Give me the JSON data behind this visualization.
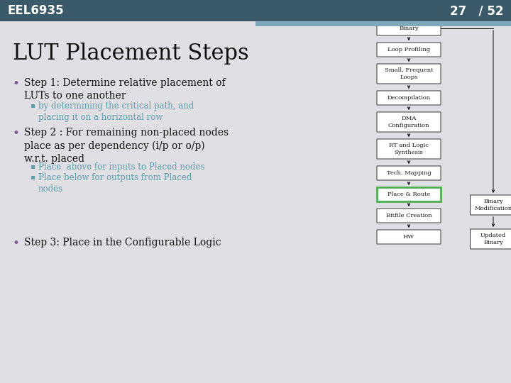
{
  "background_color": "#e0e0e4",
  "header_color": "#3a5a6a",
  "header_text": "EEL6935",
  "page_num": "27   / 52",
  "title": "LUT Placement Steps",
  "bullet_color": "#7c5c99",
  "sub_bullet_color": "#5b9eaa",
  "title_fontsize": 22,
  "main_fontsize": 10,
  "sub_fontsize": 8.5,
  "accent_color": "#7fa8b8",
  "flowchart": {
    "nodes": [
      {
        "label": "Binary",
        "col": 0,
        "row": 0,
        "h2": false,
        "highlight": false
      },
      {
        "label": "Loop Profiling",
        "col": 0,
        "row": 1,
        "h2": false,
        "highlight": false
      },
      {
        "label": "Small, Frequent\nLoops",
        "col": 0,
        "row": 2,
        "h2": true,
        "highlight": false
      },
      {
        "label": "Decompilation",
        "col": 0,
        "row": 3,
        "h2": false,
        "highlight": false
      },
      {
        "label": "DMA\nConfiguration",
        "col": 0,
        "row": 4,
        "h2": true,
        "highlight": false
      },
      {
        "label": "RT and Logic\nSynthesis",
        "col": 0,
        "row": 5,
        "h2": true,
        "highlight": false
      },
      {
        "label": "Tech. Mapping",
        "col": 0,
        "row": 6,
        "h2": false,
        "highlight": false
      },
      {
        "label": "Place & Route",
        "col": 0,
        "row": 7,
        "h2": false,
        "highlight": true
      },
      {
        "label": "Bitfile Creation",
        "col": 0,
        "row": 8,
        "h2": false,
        "highlight": false
      },
      {
        "label": "HW",
        "col": 0,
        "row": 9,
        "h2": false,
        "highlight": false
      }
    ],
    "side_nodes": [
      {
        "label": "Binary\nModification",
        "col": 1,
        "row": 7,
        "h2": true
      },
      {
        "label": "Updated\nBinary",
        "col": 1,
        "row": 8.5,
        "h2": true
      }
    ]
  }
}
